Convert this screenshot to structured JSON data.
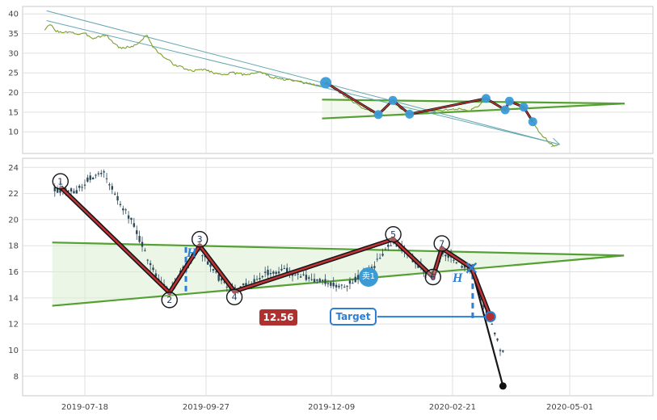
{
  "app": {
    "description": "stock charting tool with wave and trendline annotations"
  },
  "colors": {
    "grid": "#e0e0e0",
    "panel_border": "#c8c8c8",
    "axis_text": "#444444",
    "price_line": "#7d9f2c",
    "candle": "#2e4a5a",
    "wedge_line": "#55a032",
    "wedge_fill": "#dcefd2",
    "channel_line": "#63a8b0",
    "zigzag_outline": "#15151a",
    "zigzag_core": "#c43434",
    "pivot_dot_blue": "#3b9bd5",
    "joint_dot": "#8c1f1f",
    "dashed_blue": "#2b7fd4",
    "number_text": "#1f3864",
    "circle_stroke": "#15151a",
    "price_badge_bg": "#b03030",
    "price_badge_text": "#ffffff",
    "target_badge_border": "#2b7fd4",
    "sell_badge_bg": "#3b9bd5",
    "end_dot": "#111111"
  },
  "annotations": {
    "price_label": "12.56",
    "target_label": "Target",
    "sell_label": "卖1",
    "height_label": "H"
  },
  "chart_data": [
    {
      "name": "overview-panel",
      "type": "line",
      "ylim": [
        4.5,
        41.9
      ],
      "yticks": [
        10,
        15,
        20,
        25,
        30,
        35,
        40
      ],
      "grid": true,
      "legend": "none",
      "line_anchors": [
        [
          0.035,
          36.0
        ],
        [
          0.044,
          37.3
        ],
        [
          0.052,
          35.8
        ],
        [
          0.064,
          35.1
        ],
        [
          0.075,
          35.6
        ],
        [
          0.087,
          34.8
        ],
        [
          0.1,
          34.9
        ],
        [
          0.112,
          33.8
        ],
        [
          0.122,
          34.3
        ],
        [
          0.133,
          34.6
        ],
        [
          0.145,
          32.5
        ],
        [
          0.156,
          31.2
        ],
        [
          0.168,
          31.6
        ],
        [
          0.177,
          31.9
        ],
        [
          0.187,
          33.0
        ],
        [
          0.197,
          34.8
        ],
        [
          0.207,
          31.5
        ],
        [
          0.218,
          29.8
        ],
        [
          0.228,
          28.6
        ],
        [
          0.24,
          27.2
        ],
        [
          0.254,
          26.3
        ],
        [
          0.269,
          25.4
        ],
        [
          0.287,
          26.0
        ],
        [
          0.3,
          25.2
        ],
        [
          0.313,
          24.6
        ],
        [
          0.333,
          25.0
        ],
        [
          0.345,
          24.7
        ],
        [
          0.355,
          24.6
        ],
        [
          0.367,
          25.0
        ],
        [
          0.377,
          25.2
        ],
        [
          0.387,
          24.5
        ],
        [
          0.397,
          23.8
        ],
        [
          0.41,
          23.4
        ],
        [
          0.423,
          23.2
        ],
        [
          0.436,
          22.8
        ],
        [
          0.449,
          22.4
        ],
        [
          0.462,
          22.0
        ],
        [
          0.474,
          21.7
        ],
        [
          0.481,
          22.3
        ],
        [
          0.5,
          20.5
        ],
        [
          0.52,
          18.0
        ],
        [
          0.54,
          16.0
        ],
        [
          0.564,
          14.4
        ],
        [
          0.575,
          15.9
        ],
        [
          0.587,
          18.0
        ],
        [
          0.6,
          16.0
        ],
        [
          0.614,
          14.5
        ],
        [
          0.63,
          15.0
        ],
        [
          0.65,
          15.3
        ],
        [
          0.67,
          15.6
        ],
        [
          0.69,
          15.8
        ],
        [
          0.71,
          15.4
        ],
        [
          0.725,
          16.8
        ],
        [
          0.735,
          18.5
        ],
        [
          0.75,
          17.2
        ],
        [
          0.765,
          15.6
        ],
        [
          0.772,
          17.8
        ],
        [
          0.785,
          16.9
        ],
        [
          0.795,
          16.3
        ],
        [
          0.803,
          14.5
        ],
        [
          0.809,
          12.5
        ],
        [
          0.816,
          11.0
        ],
        [
          0.822,
          9.2
        ],
        [
          0.83,
          8.3
        ],
        [
          0.838,
          6.9
        ],
        [
          0.848,
          6.3
        ]
      ],
      "wedge": {
        "upper_start": [
          0.475,
          18.2
        ],
        "lower_start": [
          0.475,
          13.4
        ],
        "apex": [
          0.955,
          17.2
        ]
      },
      "channel": {
        "start_upper": [
          0.038,
          40.8
        ],
        "start_lower": [
          0.038,
          38.3
        ],
        "tip": [
          0.852,
          6.8
        ]
      },
      "pivot_map": {
        "offset": 0.452,
        "scale": 0.4816
      }
    },
    {
      "name": "detail-panel",
      "type": "candlestick",
      "ylim": [
        6.5,
        24.7
      ],
      "yticks": [
        8,
        10,
        12,
        14,
        16,
        18,
        20,
        22,
        24
      ],
      "grid": true,
      "xticks": [
        {
          "f": 0.0987,
          "label": "2019-07-18"
        },
        {
          "f": 0.291,
          "label": "2019-09-27"
        },
        {
          "f": 0.49,
          "label": "2019-12-09"
        },
        {
          "f": 0.682,
          "label": "2020-02-21"
        },
        {
          "f": 0.868,
          "label": "2020-05-01"
        }
      ],
      "candle_count": 165,
      "candle_range": [
        0.051,
        0.762
      ],
      "candle_anchors": [
        [
          0.051,
          22.3
        ],
        [
          0.086,
          22.2
        ],
        [
          0.108,
          23.2
        ],
        [
          0.131,
          23.5
        ],
        [
          0.154,
          21.3
        ],
        [
          0.172,
          20.0
        ],
        [
          0.192,
          17.8
        ],
        [
          0.214,
          15.6
        ],
        [
          0.233,
          14.5
        ],
        [
          0.249,
          15.8
        ],
        [
          0.281,
          17.8
        ],
        [
          0.3,
          16.2
        ],
        [
          0.321,
          15.0
        ],
        [
          0.336,
          14.6
        ],
        [
          0.362,
          15.1
        ],
        [
          0.387,
          15.9
        ],
        [
          0.413,
          16.2
        ],
        [
          0.436,
          15.8
        ],
        [
          0.458,
          15.4
        ],
        [
          0.483,
          15.2
        ],
        [
          0.505,
          14.9
        ],
        [
          0.528,
          15.4
        ],
        [
          0.551,
          16.0
        ],
        [
          0.569,
          17.2
        ],
        [
          0.588,
          18.3
        ],
        [
          0.605,
          17.7
        ],
        [
          0.624,
          16.7
        ],
        [
          0.641,
          16.0
        ],
        [
          0.651,
          15.7
        ],
        [
          0.665,
          17.6
        ],
        [
          0.679,
          17.1
        ],
        [
          0.697,
          16.5
        ],
        [
          0.712,
          16.2
        ],
        [
          0.723,
          14.8
        ],
        [
          0.733,
          13.3
        ],
        [
          0.742,
          12.3
        ],
        [
          0.75,
          11.2
        ],
        [
          0.756,
          10.3
        ],
        [
          0.762,
          9.8
        ]
      ],
      "wedge": {
        "upper_start": [
          0.047,
          18.25
        ],
        "lower_start": [
          0.047,
          13.4
        ],
        "apex": [
          0.954,
          17.25
        ]
      },
      "pivots": [
        {
          "label": "1",
          "f": 0.06,
          "v": 22.5,
          "dy": -7
        },
        {
          "label": "2",
          "f": 0.233,
          "v": 14.4,
          "dy": 9
        },
        {
          "label": "3",
          "f": 0.281,
          "v": 18.0,
          "dy": -8
        },
        {
          "label": "4",
          "f": 0.336,
          "v": 14.5,
          "dy": 7
        },
        {
          "label": "5",
          "f": 0.588,
          "v": 18.5,
          "dy": -6
        },
        {
          "label": "6",
          "f": 0.651,
          "v": 15.6,
          "dy": 0
        },
        {
          "label": "7",
          "f": 0.665,
          "v": 17.8,
          "dy": -6
        }
      ],
      "break_point": {
        "f": 0.712,
        "v": 16.3
      },
      "target_point": {
        "f": 0.742,
        "v": 12.56
      },
      "end_point": {
        "f": 0.762,
        "v": 7.25
      },
      "h_lines": [
        {
          "f": 0.259,
          "v_from": 17.9,
          "v_to": 14.5
        },
        {
          "f": 0.714,
          "v_from": 16.6,
          "v_to": 12.45
        }
      ],
      "sell_marker": {
        "f": 0.549,
        "v": 15.6
      }
    }
  ]
}
